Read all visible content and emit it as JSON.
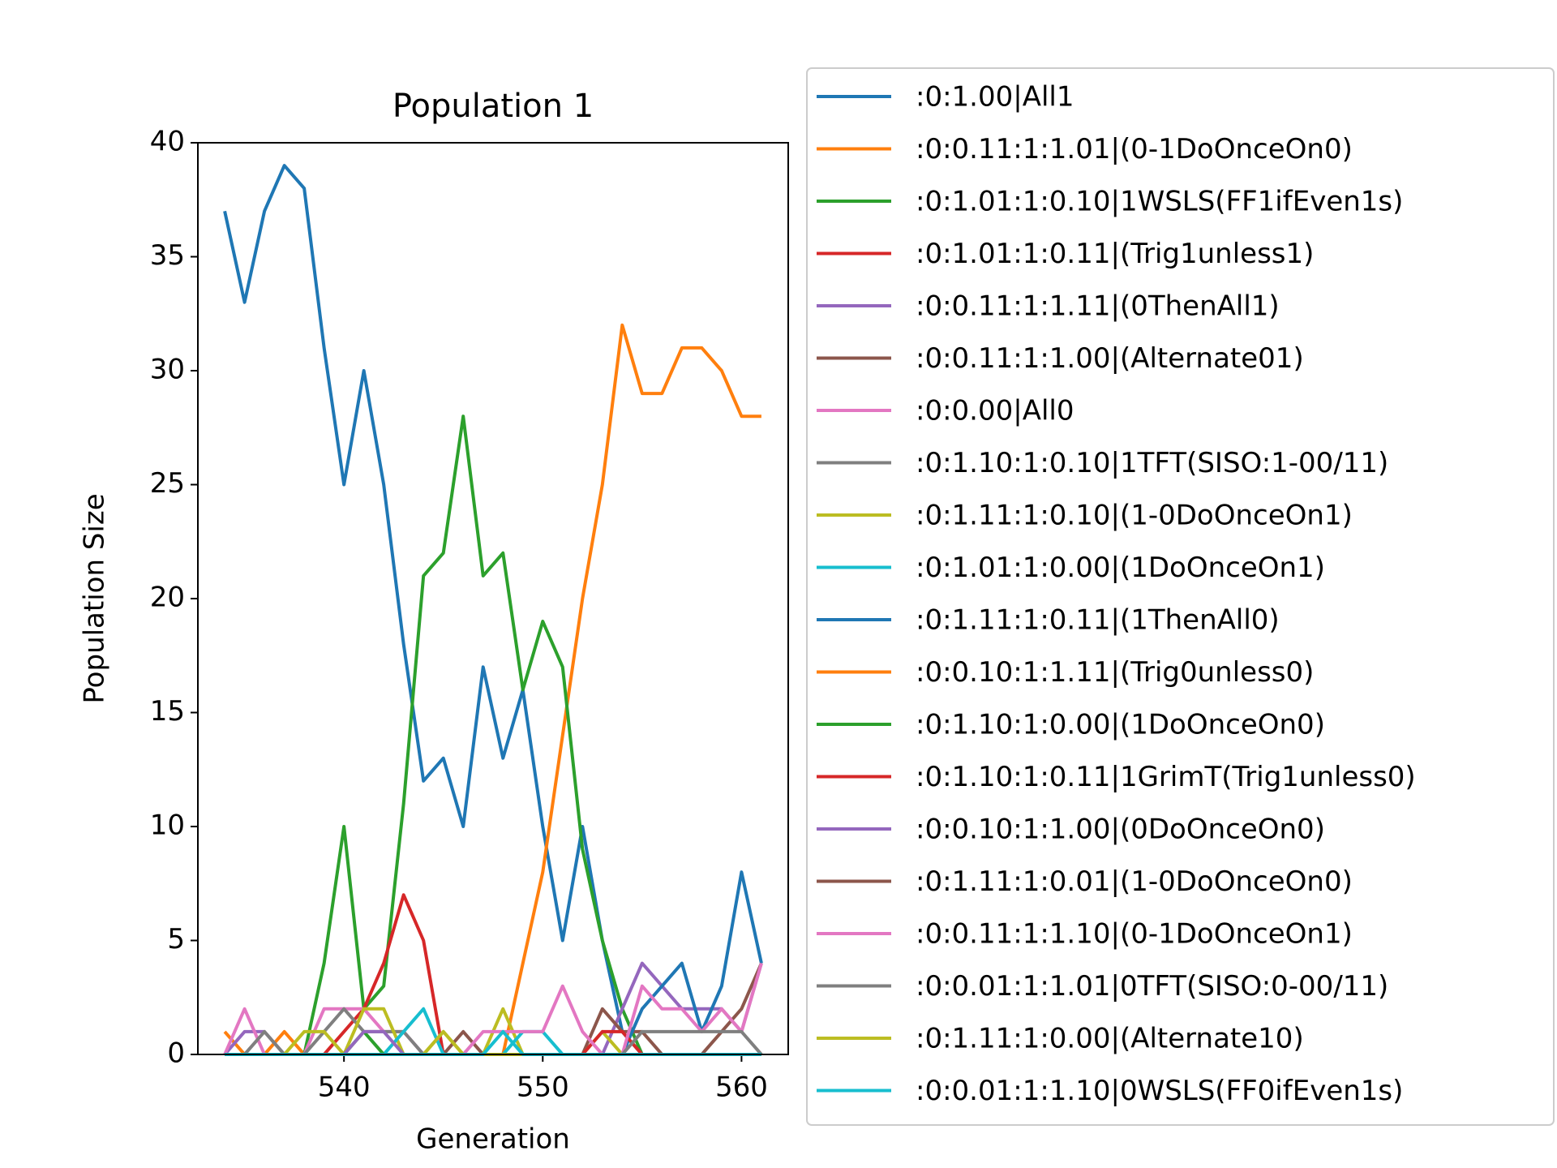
{
  "chart_data": {
    "type": "line",
    "title": "Population 1",
    "x_label": "Generation",
    "y_label": "Population Size",
    "x": [
      534,
      535,
      536,
      537,
      538,
      539,
      540,
      541,
      542,
      543,
      544,
      545,
      546,
      547,
      548,
      549,
      550,
      551,
      552,
      553,
      554,
      555,
      556,
      557,
      558,
      559,
      560,
      561
    ],
    "xlim": [
      532.65,
      562.35
    ],
    "xticks": [
      540,
      550,
      560
    ],
    "ylim": [
      0,
      40
    ],
    "yticks": [
      0,
      5,
      10,
      15,
      20,
      25,
      30,
      35,
      40
    ],
    "legend_position": "outside-right",
    "series": [
      {
        "name": ":0:1.00|All1",
        "color": "#1f77b4",
        "values": [
          37,
          33,
          37,
          39,
          38,
          31,
          25,
          30,
          25,
          18,
          12,
          13,
          10,
          17,
          13,
          16,
          10,
          5,
          10,
          5,
          1,
          0,
          0,
          0,
          0,
          0,
          0,
          0
        ]
      },
      {
        "name": ":0:0.11:1:1.01|(0-1DoOnceOn0)",
        "color": "#ff7f0e",
        "values": [
          1,
          0,
          0,
          1,
          0,
          0,
          0,
          0,
          0,
          0,
          0,
          0,
          0,
          0,
          0,
          4,
          8,
          14,
          20,
          25,
          32,
          29,
          29,
          31,
          31,
          30,
          28,
          28
        ]
      },
      {
        "name": ":0:1.01:1:0.10|1WSLS(FF1ifEven1s)",
        "color": "#2ca02c",
        "values": [
          0,
          0,
          0,
          0,
          0,
          4,
          10,
          2,
          3,
          11,
          21,
          22,
          28,
          21,
          22,
          16,
          19,
          17,
          9,
          5,
          2,
          0,
          0,
          0,
          0,
          0,
          0,
          0
        ]
      },
      {
        "name": ":0:1.01:1:0.11|(Trig1unless1)",
        "color": "#d62728",
        "values": [
          0,
          0,
          0,
          0,
          0,
          0,
          1,
          2,
          4,
          7,
          5,
          0,
          0,
          0,
          0,
          0,
          0,
          0,
          0,
          0,
          0,
          0,
          0,
          0,
          0,
          0,
          0,
          0
        ]
      },
      {
        "name": ":0:0.11:1:1.11|(0ThenAll1)",
        "color": "#9467bd",
        "values": [
          0,
          1,
          1,
          0,
          0,
          0,
          0,
          0,
          0,
          0,
          0,
          0,
          0,
          0,
          0,
          0,
          0,
          0,
          0,
          0,
          2,
          4,
          3,
          2,
          2,
          2,
          1,
          4
        ]
      },
      {
        "name": ":0:0.11:1:1.00|(Alternate01)",
        "color": "#8c564b",
        "values": [
          0,
          0,
          0,
          0,
          0,
          0,
          0,
          0,
          0,
          0,
          0,
          0,
          1,
          0,
          0,
          0,
          0,
          0,
          0,
          2,
          1,
          1,
          0,
          0,
          0,
          0,
          0,
          0
        ]
      },
      {
        "name": ":0:0.00|All0",
        "color": "#e377c2",
        "values": [
          0,
          2,
          0,
          0,
          0,
          2,
          2,
          2,
          1,
          1,
          0,
          0,
          0,
          0,
          0,
          0,
          0,
          0,
          0,
          0,
          0,
          0,
          0,
          0,
          0,
          0,
          0,
          0
        ]
      },
      {
        "name": ":0:1.10:1:0.10|1TFT(SISO:1-00/11)",
        "color": "#7f7f7f",
        "values": [
          0,
          0,
          1,
          0,
          0,
          1,
          2,
          1,
          1,
          1,
          0,
          0,
          0,
          0,
          0,
          0,
          0,
          0,
          0,
          0,
          0,
          0,
          0,
          0,
          0,
          0,
          0,
          0
        ]
      },
      {
        "name": ":0:1.11:1:0.10|(1-0DoOnceOn1)",
        "color": "#bcbd22",
        "values": [
          0,
          0,
          0,
          0,
          1,
          1,
          0,
          2,
          2,
          0,
          0,
          1,
          0,
          0,
          2,
          0,
          0,
          0,
          0,
          1,
          0,
          0,
          0,
          0,
          0,
          0,
          0,
          0
        ]
      },
      {
        "name": ":0:1.01:1:0.00|(1DoOnceOn1)",
        "color": "#17becf",
        "values": [
          0,
          0,
          0,
          0,
          0,
          0,
          0,
          0,
          0,
          1,
          2,
          0,
          0,
          0,
          0,
          1,
          1,
          0,
          0,
          0,
          0,
          0,
          0,
          0,
          0,
          0,
          0,
          0
        ]
      },
      {
        "name": ":0:1.11:1:0.11|(1ThenAll0)",
        "color": "#1f77b4",
        "values": [
          0,
          0,
          0,
          0,
          0,
          0,
          0,
          0,
          0,
          0,
          0,
          0,
          0,
          0,
          0,
          0,
          0,
          0,
          0,
          0,
          0,
          2,
          3,
          4,
          1,
          3,
          8,
          4
        ]
      },
      {
        "name": ":0:0.10:1:1.11|(Trig0unless0)",
        "color": "#ff7f0e",
        "values": [
          0,
          0,
          0,
          0,
          0,
          0,
          0,
          0,
          0,
          0,
          0,
          0,
          0,
          0,
          0,
          0,
          0,
          0,
          0,
          0,
          0,
          0,
          0,
          0,
          0,
          0,
          0,
          0
        ]
      },
      {
        "name": ":0:1.10:1:0.00|(1DoOnceOn0)",
        "color": "#2ca02c",
        "values": [
          0,
          0,
          0,
          0,
          0,
          0,
          0,
          1,
          0,
          0,
          0,
          0,
          0,
          0,
          0,
          0,
          0,
          0,
          0,
          0,
          0,
          0,
          0,
          0,
          0,
          0,
          0,
          0
        ]
      },
      {
        "name": ":0:1.10:1:0.11|1GrimT(Trig1unless0)",
        "color": "#d62728",
        "values": [
          0,
          0,
          0,
          0,
          0,
          0,
          0,
          0,
          0,
          0,
          0,
          0,
          0,
          0,
          0,
          0,
          0,
          0,
          0,
          1,
          1,
          0,
          0,
          0,
          0,
          0,
          0,
          0
        ]
      },
      {
        "name": ":0:0.10:1:1.00|(0DoOnceOn0)",
        "color": "#9467bd",
        "values": [
          0,
          0,
          0,
          0,
          0,
          0,
          0,
          1,
          1,
          0,
          0,
          0,
          0,
          0,
          0,
          0,
          0,
          0,
          0,
          0,
          0,
          0,
          0,
          0,
          0,
          0,
          0,
          0
        ]
      },
      {
        "name": ":0:1.11:1:0.01|(1-0DoOnceOn0)",
        "color": "#8c564b",
        "values": [
          0,
          0,
          0,
          0,
          0,
          0,
          0,
          0,
          0,
          0,
          0,
          0,
          0,
          0,
          0,
          0,
          0,
          0,
          0,
          0,
          0,
          0,
          0,
          0,
          0,
          1,
          2,
          4
        ]
      },
      {
        "name": ":0:0.11:1:1.10|(0-1DoOnceOn1)",
        "color": "#e377c2",
        "values": [
          0,
          0,
          0,
          0,
          0,
          0,
          0,
          0,
          0,
          0,
          0,
          0,
          0,
          1,
          1,
          1,
          1,
          3,
          1,
          0,
          0,
          3,
          2,
          2,
          1,
          2,
          1,
          4
        ]
      },
      {
        "name": ":0:0.01:1:1.01|0TFT(SISO:0-00/11)",
        "color": "#7f7f7f",
        "values": [
          0,
          0,
          0,
          0,
          0,
          0,
          0,
          0,
          0,
          0,
          0,
          0,
          0,
          0,
          0,
          0,
          0,
          0,
          0,
          0,
          0,
          1,
          1,
          1,
          1,
          1,
          1,
          0
        ]
      },
      {
        "name": ":0:1.11:1:0.00|(Alternate10)",
        "color": "#bcbd22",
        "values": [
          0,
          0,
          0,
          0,
          0,
          0,
          0,
          0,
          0,
          0,
          0,
          1,
          0,
          0,
          0,
          0,
          0,
          0,
          0,
          0,
          0,
          0,
          0,
          0,
          0,
          0,
          0,
          0
        ]
      },
      {
        "name": ":0:0.01:1:1.10|0WSLS(FF0ifEven1s)",
        "color": "#17becf",
        "values": [
          0,
          0,
          0,
          0,
          0,
          0,
          0,
          0,
          0,
          0,
          0,
          0,
          0,
          0,
          1,
          0,
          0,
          0,
          0,
          0,
          0,
          0,
          0,
          0,
          0,
          0,
          0,
          0
        ]
      }
    ]
  }
}
